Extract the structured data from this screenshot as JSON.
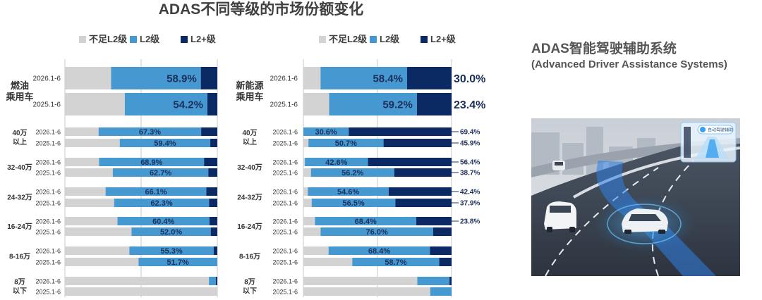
{
  "title": "ADAS不同等级的市场份额变化",
  "side_panel": {
    "title": "ADAS智能驾驶辅助系统",
    "subtitle": "(Advanced Driver Assistance Systems)",
    "illustration_label": "自动驾驶辅助"
  },
  "colors": {
    "below_l2": "#d3d3d3",
    "l2": "#4599d0",
    "l2plus": "#0b2a64",
    "value_text": "#1b2f5c"
  },
  "legend": [
    "不足L2级",
    "L2级",
    "L2+级"
  ],
  "chart_data": [
    {
      "type": "bar",
      "stacked": true,
      "orientation": "horizontal",
      "panel": "燃油乘用车",
      "legend": [
        "不足L2级",
        "L2级",
        "L2+级"
      ],
      "groups": [
        {
          "label": "燃油乘用车",
          "rows": [
            {
              "period": "2026.1-6",
              "below_l2": 30.3,
              "l2": 58.9,
              "l2plus": 10.8,
              "l2_label": "58.9%",
              "l2plus_label": ""
            },
            {
              "period": "2025.1-6",
              "below_l2": 39.3,
              "l2": 54.2,
              "l2plus": 6.5,
              "l2_label": "54.2%",
              "l2plus_label": ""
            }
          ]
        },
        {
          "label": "40万以上",
          "rows": [
            {
              "period": "2026.1-6",
              "below_l2": 22.1,
              "l2": 67.3,
              "l2plus": 10.6,
              "l2_label": "67.3%",
              "l2plus_label": ""
            },
            {
              "period": "2025.1-6",
              "below_l2": 36.0,
              "l2": 59.4,
              "l2plus": 4.6,
              "l2_label": "59.4%",
              "l2plus_label": ""
            }
          ]
        },
        {
          "label": "32-40万",
          "rows": [
            {
              "period": "2026.1-6",
              "below_l2": 22.4,
              "l2": 68.9,
              "l2plus": 8.7,
              "l2_label": "68.9%",
              "l2plus_label": ""
            },
            {
              "period": "2025.1-6",
              "below_l2": 31.4,
              "l2": 62.7,
              "l2plus": 5.9,
              "l2_label": "62.7%",
              "l2plus_label": ""
            }
          ]
        },
        {
          "label": "24-32万",
          "rows": [
            {
              "period": "2026.1-6",
              "below_l2": 26.7,
              "l2": 66.1,
              "l2plus": 7.2,
              "l2_label": "66.1%",
              "l2plus_label": ""
            },
            {
              "period": "2025.1-6",
              "below_l2": 32.3,
              "l2": 62.3,
              "l2plus": 5.4,
              "l2_label": "62.3%",
              "l2plus_label": ""
            }
          ]
        },
        {
          "label": "16-24万",
          "rows": [
            {
              "period": "2026.1-6",
              "below_l2": 34.5,
              "l2": 60.4,
              "l2plus": 5.1,
              "l2_label": "60.4%",
              "l2plus_label": ""
            },
            {
              "period": "2025.1-6",
              "below_l2": 43.7,
              "l2": 52.0,
              "l2plus": 4.3,
              "l2_label": "52.0%",
              "l2plus_label": ""
            }
          ]
        },
        {
          "label": "8-16万",
          "rows": [
            {
              "period": "2026.1-6",
              "below_l2": 42.3,
              "l2": 55.3,
              "l2plus": 2.4,
              "l2_label": "55.3%",
              "l2plus_label": ""
            },
            {
              "period": "2025.1-6",
              "below_l2": 48.3,
              "l2": 51.7,
              "l2plus": 0.0,
              "l2_label": "51.7%",
              "l2plus_label": ""
            }
          ]
        },
        {
          "label": "8万以下",
          "rows": [
            {
              "period": "2026.1-6",
              "below_l2": 94.5,
              "l2": 4.6,
              "l2plus": 0.9,
              "l2_label": "",
              "l2plus_label": ""
            },
            {
              "period": "2025.1-6",
              "below_l2": 100.0,
              "l2": 0.0,
              "l2plus": 0.0,
              "l2_label": "",
              "l2plus_label": ""
            }
          ]
        }
      ],
      "xlim": [
        0,
        100
      ]
    },
    {
      "type": "bar",
      "stacked": true,
      "orientation": "horizontal",
      "panel": "新能源乘用车",
      "legend": [
        "不足L2级",
        "L2级",
        "L2+级"
      ],
      "groups": [
        {
          "label": "新能源乘用车",
          "rows": [
            {
              "period": "2026.1-6",
              "below_l2": 11.6,
              "l2": 58.4,
              "l2plus": 30.0,
              "l2_label": "58.4%",
              "l2plus_label": "30.0%"
            },
            {
              "period": "2025.1-6",
              "below_l2": 17.4,
              "l2": 59.2,
              "l2plus": 23.4,
              "l2_label": "59.2%",
              "l2plus_label": "23.4%"
            }
          ]
        },
        {
          "label": "40万以上",
          "rows": [
            {
              "period": "2026.1-6",
              "below_l2": 0.0,
              "l2": 30.6,
              "l2plus": 69.4,
              "l2_label": "30.6%",
              "l2plus_label": "69.4%"
            },
            {
              "period": "2025.1-6",
              "below_l2": 3.4,
              "l2": 50.7,
              "l2plus": 45.9,
              "l2_label": "50.7%",
              "l2plus_label": "45.9%"
            }
          ]
        },
        {
          "label": "32-40万",
          "rows": [
            {
              "period": "2026.1-6",
              "below_l2": 1.0,
              "l2": 42.6,
              "l2plus": 56.4,
              "l2_label": "42.6%",
              "l2plus_label": "56.4%"
            },
            {
              "period": "2025.1-6",
              "below_l2": 5.1,
              "l2": 56.2,
              "l2plus": 38.7,
              "l2_label": "56.2%",
              "l2plus_label": "38.7%"
            }
          ]
        },
        {
          "label": "24-32万",
          "rows": [
            {
              "period": "2026.1-6",
              "below_l2": 3.0,
              "l2": 54.6,
              "l2plus": 42.4,
              "l2_label": "54.6%",
              "l2plus_label": "42.4%"
            },
            {
              "period": "2025.1-6",
              "below_l2": 5.6,
              "l2": 56.5,
              "l2plus": 37.9,
              "l2_label": "56.5%",
              "l2plus_label": "37.9%"
            }
          ]
        },
        {
          "label": "16-24万",
          "rows": [
            {
              "period": "2026.1-6",
              "below_l2": 7.8,
              "l2": 68.4,
              "l2plus": 23.8,
              "l2_label": "68.4%",
              "l2plus_label": "23.8%"
            },
            {
              "period": "2025.1-6",
              "below_l2": 11.6,
              "l2": 76.0,
              "l2plus": 12.4,
              "l2_label": "76.0%",
              "l2plus_label": ""
            }
          ]
        },
        {
          "label": "8-16万",
          "rows": [
            {
              "period": "2026.1-6",
              "below_l2": 17.0,
              "l2": 68.4,
              "l2plus": 14.6,
              "l2_label": "68.4%",
              "l2plus_label": ""
            },
            {
              "period": "2025.1-6",
              "below_l2": 33.0,
              "l2": 58.7,
              "l2plus": 8.3,
              "l2_label": "58.7%",
              "l2plus_label": ""
            }
          ]
        },
        {
          "label": "8万以下",
          "rows": [
            {
              "period": "2026.1-6",
              "below_l2": 76.9,
              "l2": 21.7,
              "l2plus": 1.4,
              "l2_label": "",
              "l2plus_label": ""
            },
            {
              "period": "2025.1-6",
              "below_l2": 85.6,
              "l2": 14.4,
              "l2plus": 0.0,
              "l2_label": "",
              "l2plus_label": ""
            }
          ]
        }
      ],
      "xlim": [
        0,
        100
      ]
    }
  ]
}
